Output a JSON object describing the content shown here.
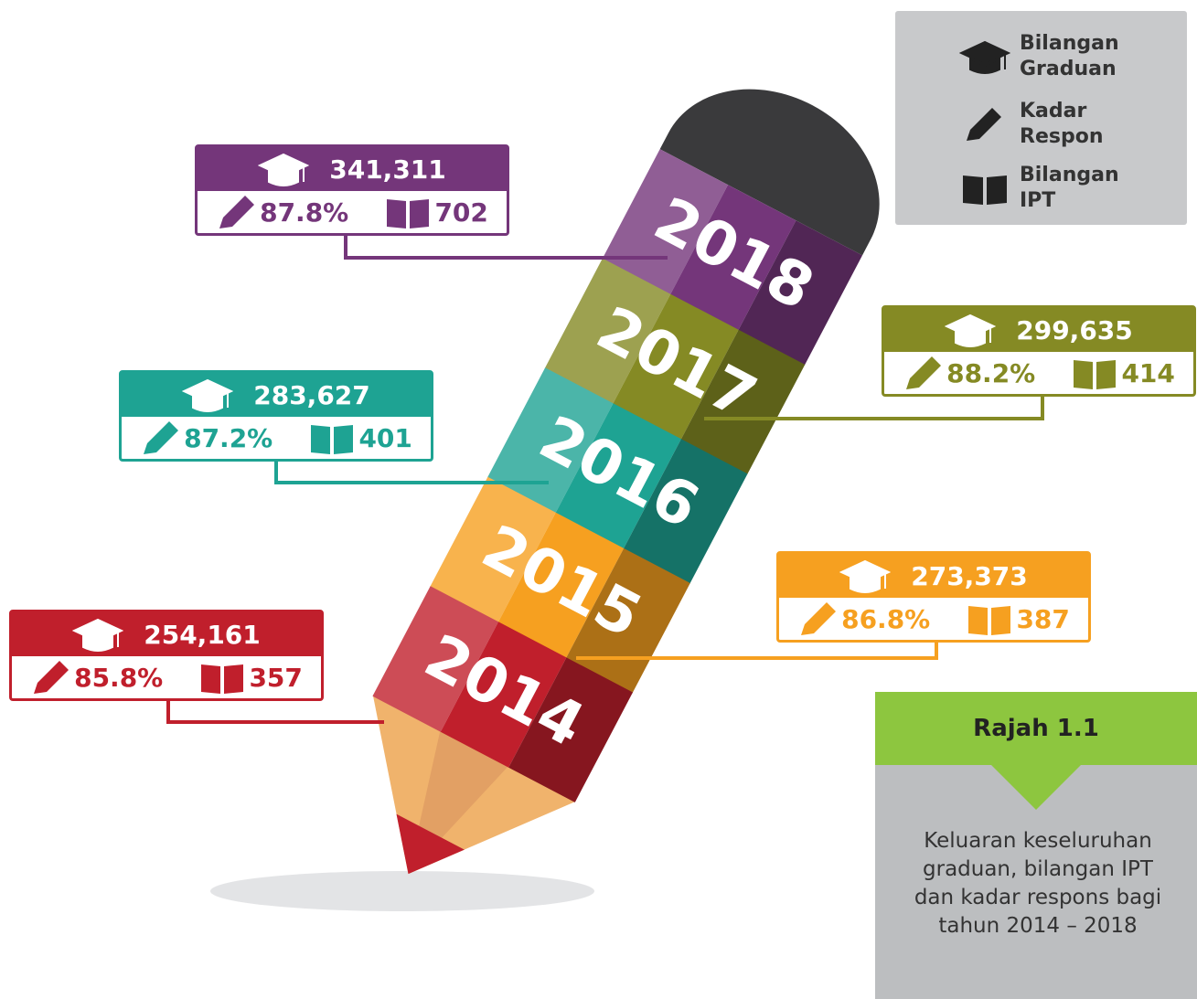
{
  "legend": [
    {
      "label": "Bilangan Graduan"
    },
    {
      "label": "Kadar Respon"
    },
    {
      "label": "Bilangan IPT"
    }
  ],
  "years": [
    {
      "year": "2018",
      "graduates": "341,311",
      "response_rate": "87.8%",
      "institutions": "702",
      "color": "#74367a"
    },
    {
      "year": "2017",
      "graduates": "299,635",
      "response_rate": "88.2%",
      "institutions": "414",
      "color": "#858a24"
    },
    {
      "year": "2016",
      "graduates": "283,627",
      "response_rate": "87.2%",
      "institutions": "401",
      "color": "#1ea393"
    },
    {
      "year": "2015",
      "graduates": "273,373",
      "response_rate": "86.8%",
      "institutions": "387",
      "color": "#f6a020"
    },
    {
      "year": "2014",
      "graduates": "254,161",
      "response_rate": "85.8%",
      "institutions": "357",
      "color": "#c01f2c"
    }
  ],
  "caption": {
    "title": "Rajah 1.1",
    "text": "Keluaran keseluruhan graduan, bilangan IPT dan kadar respons bagi tahun 2014 – 2018"
  }
}
